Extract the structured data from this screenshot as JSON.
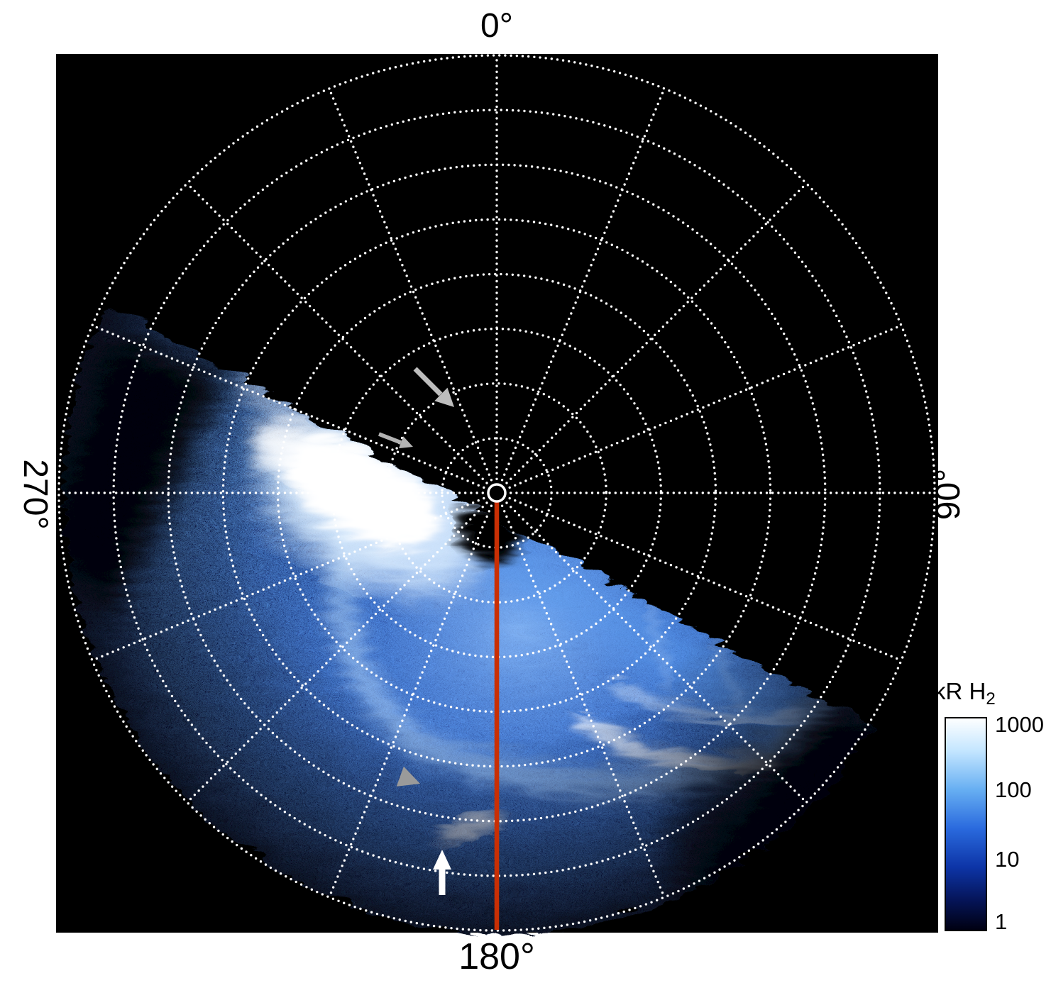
{
  "figure": {
    "kind": "polar auroral emission map",
    "background": "#ffffff",
    "plot_background": "#000000"
  },
  "plot": {
    "labels": {
      "top": "0°",
      "right": "90°",
      "bottom": "180°",
      "left": "270°"
    }
  },
  "colorbar": {
    "title_main": "kR H",
    "title_sub": "2",
    "ticks": [
      "1000",
      "100",
      "10",
      "1"
    ]
  },
  "chart_data": {
    "type": "heatmap",
    "projection": "polar",
    "title": "",
    "description": "Polar projection of H2 auroral emission brightness; emission swath covers roughly azimuths 110°-250° (lower half of disk), black elsewhere. Bright white patch adjacent to the pole on the dusk-side of the observation boundary, an auroral oval arc of bright wisps at mid radius toward 135°-160°, and faint speckled emission out to the limb.",
    "angular_tick_labels": [
      "0°",
      "90°",
      "180°",
      "270°"
    ],
    "angular_tick_positions_deg": [
      0,
      90,
      180,
      270
    ],
    "grid": {
      "spoke_step_deg": 22.5,
      "spoke_inner_fraction": 0.032,
      "ring_fractions": [
        0.125,
        0.25,
        0.375,
        0.5,
        0.625,
        0.75,
        0.875,
        1.0
      ],
      "style": "dotted-white"
    },
    "meridian": {
      "azimuth_deg": 180,
      "color": "#c92f04",
      "note": "solid red-orange line from pole to outer ring at 180°"
    },
    "colorbar": {
      "label": "kR H2",
      "scale": "log",
      "tick_values": [
        1,
        10,
        100,
        1000
      ],
      "top_color": "#ffffff",
      "bottom_color": "#000010",
      "orientation": "vertical",
      "position": "right"
    },
    "annotations": [
      {
        "type": "arrow",
        "color": "#bdbdbd",
        "points_to": "emission boundary, upper segment",
        "direction": "down-right"
      },
      {
        "type": "arrow",
        "color": "#b3b3b3",
        "points_to": "emission boundary, near pole",
        "direction": "right-down"
      },
      {
        "type": "arrowhead",
        "color": "#9a9a9a",
        "points_to": "faint outer arc feature",
        "direction": "right-down"
      },
      {
        "type": "arrow",
        "color": "#ffffff",
        "points_to": "outer emission feature near 180°",
        "direction": "up"
      }
    ]
  }
}
